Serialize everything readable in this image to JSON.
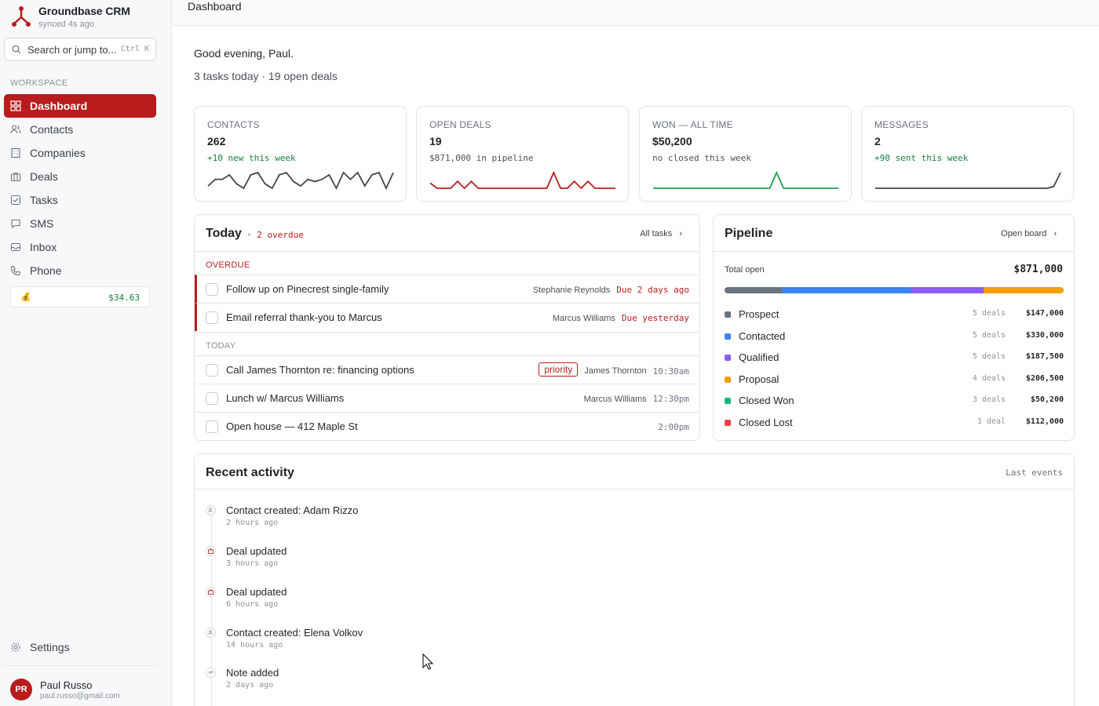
{
  "brand": {
    "name": "Groundbase CRM",
    "sync_status": "synced 4s ago"
  },
  "search": {
    "placeholder": "Search or jump to...",
    "shortcut": "Ctrl K"
  },
  "sidebar": {
    "section_label": "WORKSPACE",
    "items": [
      {
        "label": "Dashboard",
        "icon": "grid-icon",
        "active": true
      },
      {
        "label": "Contacts",
        "icon": "users-icon"
      },
      {
        "label": "Companies",
        "icon": "building-icon"
      },
      {
        "label": "Deals",
        "icon": "briefcase-icon"
      },
      {
        "label": "Tasks",
        "icon": "checkbox-icon"
      },
      {
        "label": "SMS",
        "icon": "message-icon"
      },
      {
        "label": "Inbox",
        "icon": "inbox-icon"
      },
      {
        "label": "Phone",
        "icon": "phone-icon"
      }
    ],
    "wallet": {
      "amount": "$34.63"
    },
    "settings_label": "Settings",
    "user": {
      "initials": "PR",
      "name": "Paul Russo",
      "email": "paul.russo@gmail.com"
    }
  },
  "header": {
    "title": "Dashboard"
  },
  "main": {
    "greeting": "Good evening, Paul.",
    "summary": "3 tasks today · 19 open deals",
    "kpis": [
      {
        "label": "CONTACTS",
        "value": "262",
        "sub": "+10 new this week",
        "sub_color": "green",
        "spark_color": "#3f4650",
        "spark": [
          3,
          6,
          6,
          8,
          4,
          2,
          8,
          9,
          4,
          2,
          8,
          9,
          5,
          3,
          6,
          5,
          6,
          8,
          2,
          9,
          6,
          9,
          3,
          8,
          9,
          2,
          9
        ]
      },
      {
        "label": "OPEN DEALS",
        "value": "19",
        "sub": "$871,000 in pipeline",
        "sub_color": "neutral",
        "spark_color": "#b91c1c",
        "spark": [
          4,
          1,
          1,
          1,
          5,
          1,
          5,
          1,
          1,
          1,
          1,
          1,
          1,
          1,
          1,
          1,
          1,
          1,
          10,
          1,
          1,
          5,
          1,
          5,
          1,
          1,
          1,
          1
        ]
      },
      {
        "label": "WON — ALL TIME",
        "value": "$50,200",
        "sub": "no closed this week",
        "sub_color": "neutral",
        "spark_color": "#16a34a",
        "spark": [
          1,
          1,
          1,
          1,
          1,
          1,
          1,
          1,
          1,
          1,
          1,
          1,
          1,
          1,
          1,
          1,
          1,
          1,
          10,
          1,
          1,
          1,
          1,
          1,
          1,
          1,
          1,
          1
        ]
      },
      {
        "label": "MESSAGES",
        "value": "2",
        "sub": "+90 sent this week",
        "sub_color": "green",
        "spark_color": "#3f4650",
        "spark": [
          1,
          1,
          1,
          1,
          1,
          1,
          1,
          1,
          1,
          1,
          1,
          1,
          1,
          1,
          1,
          1,
          1,
          1,
          1,
          1,
          1,
          1,
          1,
          1,
          1,
          1,
          2,
          10
        ]
      }
    ],
    "today": {
      "title": "Today",
      "overdue_count": "· 2 overdue",
      "link": "All tasks",
      "overdue_label": "OVERDUE",
      "today_label": "TODAY",
      "overdue_tasks": [
        {
          "title": "Follow up on Pinecrest single-family",
          "person": "Stephanie Reynolds",
          "due": "Due 2 days ago"
        },
        {
          "title": "Email referral thank-you to Marcus",
          "person": "Marcus Williams",
          "due": "Due yesterday"
        }
      ],
      "today_tasks": [
        {
          "title": "Call James Thornton re: financing options",
          "badge": "priority",
          "person": "James Thornton",
          "time": "10:30am"
        },
        {
          "title": "Lunch w/ Marcus Williams",
          "person": "Marcus Williams",
          "time": "12:30pm"
        },
        {
          "title": "Open house — 412 Maple St",
          "time": "2:00pm"
        }
      ]
    },
    "pipeline": {
      "title": "Pipeline",
      "link": "Open board",
      "total_label": "Total open",
      "total_value": "$871,000",
      "stages": [
        {
          "name": "Prospect",
          "count": "5 deals",
          "amount": "$147,000",
          "color": "#6b7280",
          "share": 0.169
        },
        {
          "name": "Contacted",
          "count": "5 deals",
          "amount": "$330,000",
          "color": "#3b82f6",
          "share": 0.379
        },
        {
          "name": "Qualified",
          "count": "5 deals",
          "amount": "$187,500",
          "color": "#8b5cf6",
          "share": 0.215
        },
        {
          "name": "Proposal",
          "count": "4 deals",
          "amount": "$206,500",
          "color": "#f59e0b",
          "share": 0.237
        },
        {
          "name": "Closed Won",
          "count": "3 deals",
          "amount": "$50,200",
          "color": "#10b981"
        },
        {
          "name": "Closed Lost",
          "count": "1 deal",
          "amount": "$112,000",
          "color": "#ef4444"
        }
      ]
    },
    "activity": {
      "title": "Recent activity",
      "link": "Last events",
      "items": [
        {
          "title": "Contact created: Adam Rizzo",
          "time": "2 hours ago",
          "icon": "user-plus-icon"
        },
        {
          "title": "Deal updated",
          "time": "3 hours ago",
          "icon": "briefcase-icon"
        },
        {
          "title": "Deal updated",
          "time": "6 hours ago",
          "icon": "briefcase-icon"
        },
        {
          "title": "Contact created: Elena Volkov",
          "time": "14 hours ago",
          "icon": "user-plus-icon"
        },
        {
          "title": "Note added",
          "time": "2 days ago",
          "icon": "note-icon"
        }
      ]
    }
  }
}
